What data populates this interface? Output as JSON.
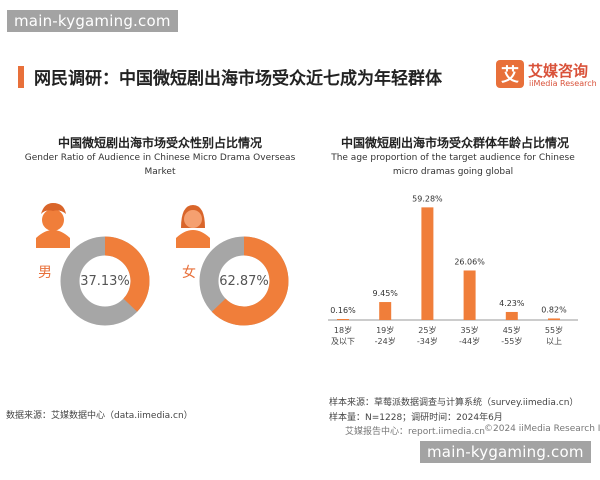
{
  "watermark": {
    "top": "main-kygaming.com",
    "bottom": "main-kygaming.com"
  },
  "header": {
    "title": "网民调研：中国微短剧出海市场受众近七成为年轻群体"
  },
  "brand": {
    "logo_char": "艾",
    "name_cn": "艾媒咨询",
    "name_en": "iiMedia Research"
  },
  "left_chart": {
    "title_cn": "中国微短剧出海市场受众性别占比情况",
    "title_en": "Gender Ratio of Audience in Chinese Micro Drama Overseas Market"
  },
  "right_chart": {
    "title_cn": "中国微短剧出海市场受众群体年龄占比情况",
    "title_en": "The age proportion of the target audience for Chinese micro dramas going global"
  },
  "chart_data": [
    {
      "type": "pie",
      "variant": "donut",
      "label": "男",
      "value_label": "37.13%",
      "value": 37.13,
      "colors": {
        "value": "#f07e3a",
        "rest": "#a6a6a6"
      }
    },
    {
      "type": "pie",
      "variant": "donut",
      "label": "女",
      "value_label": "62.87%",
      "value": 62.87,
      "colors": {
        "value": "#f07e3a",
        "rest": "#a6a6a6"
      }
    },
    {
      "type": "bar",
      "categories": [
        [
          "18岁",
          "及以下"
        ],
        [
          "19岁",
          "-24岁"
        ],
        [
          "25岁",
          "-34岁"
        ],
        [
          "35岁",
          "-44岁"
        ],
        [
          "45岁",
          "-55岁"
        ],
        [
          "55岁",
          "以上"
        ]
      ],
      "values": [
        0.16,
        9.45,
        59.28,
        26.06,
        4.23,
        0.82
      ],
      "value_labels": [
        "0.16%",
        "9.45%",
        "59.28%",
        "26.06%",
        "4.23%",
        "0.82%"
      ],
      "ylim": [
        0,
        60
      ],
      "bar_color": "#f07e3a",
      "grid": false
    }
  ],
  "footer": {
    "source_left": "数据来源：艾媒数据中心（data.iimedia.cn）",
    "sample_source": "样本来源：草莓派数据调查与计算系统（survey.iimedia.cn）",
    "sample_size": "样本量：N=1228；调研时间：2024年6月",
    "report_center": "艾媒报告中心：report.iimedia.cn",
    "copyright": "©2024  iiMedia Research  Inc"
  }
}
